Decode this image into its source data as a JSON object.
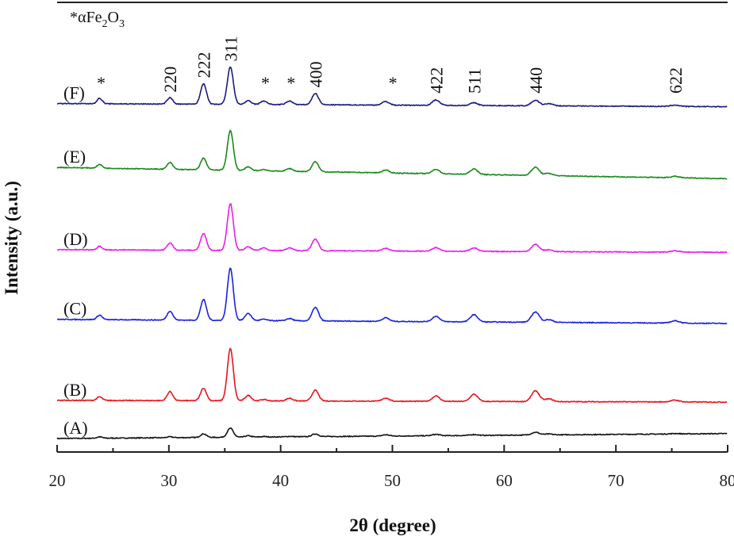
{
  "chart_data": {
    "type": "line",
    "title": "",
    "xlabel": "2θ (degree)",
    "ylabel": "Intensity (a.u.)",
    "xlim": [
      20,
      80
    ],
    "ylim": [
      0,
      100
    ],
    "xticks": [
      "20",
      "30",
      "40",
      "50",
      "60",
      "70",
      "80"
    ],
    "grid": false,
    "legend_note": {
      "star": "*",
      "alpha": "α",
      "fe": "Fe",
      "sub2": "2",
      "o": "O",
      "sub3": "3"
    },
    "peak_positions": [
      23.8,
      30.1,
      33.1,
      35.5,
      37.1,
      38.5,
      40.8,
      43.1,
      49.4,
      53.9,
      57.3,
      62.8,
      64.0,
      75.3
    ],
    "series": [
      {
        "name": "(A)",
        "color": "#111111",
        "baseline": [
          3.0,
          4.1
        ],
        "heights": [
          0.3,
          0.2,
          0.8,
          2.0,
          0.3,
          0.1,
          0.1,
          0.6,
          0.3,
          0.3,
          0.2,
          0.6,
          0.2,
          0.1
        ]
      },
      {
        "name": "(B)",
        "color": "#e8141c",
        "baseline": [
          11.5,
          11.1
        ],
        "heights": [
          0.8,
          2.0,
          2.8,
          11.6,
          1.2,
          0.3,
          0.6,
          2.4,
          0.7,
          1.2,
          1.6,
          2.4,
          0.6,
          0.4
        ]
      },
      {
        "name": "(C)",
        "color": "#1a22e0",
        "baseline": [
          29.5,
          28.6
        ],
        "heights": [
          1.0,
          2.0,
          4.6,
          11.6,
          1.6,
          0.3,
          0.5,
          3.0,
          0.8,
          1.2,
          1.6,
          2.3,
          0.6,
          0.5
        ]
      },
      {
        "name": "(D)",
        "color": "#e81ee8",
        "baseline": [
          45.0,
          44.4
        ],
        "heights": [
          0.8,
          1.6,
          3.8,
          10.4,
          0.8,
          0.6,
          0.6,
          2.6,
          0.6,
          0.8,
          0.8,
          1.6,
          0.4,
          0.3
        ]
      },
      {
        "name": "(E)",
        "color": "#1a8a1a",
        "baseline": [
          63.3,
          60.8
        ],
        "heights": [
          0.8,
          1.5,
          2.6,
          8.8,
          0.8,
          0.3,
          0.6,
          2.2,
          0.6,
          1.0,
          1.2,
          1.8,
          0.5,
          0.3
        ]
      },
      {
        "name": "(F)",
        "color": "#1a1a80",
        "baseline": [
          77.5,
          76.8
        ],
        "heights": [
          1.2,
          1.4,
          4.6,
          8.3,
          0.8,
          0.8,
          0.8,
          2.5,
          0.8,
          1.2,
          0.6,
          1.2,
          0.5,
          0.3
        ]
      }
    ],
    "hkl_labels": [
      {
        "text": "220",
        "x": 30.1
      },
      {
        "text": "222",
        "x": 33.1
      },
      {
        "text": "311",
        "x": 35.5
      },
      {
        "text": "400",
        "x": 43.1
      },
      {
        "text": "422",
        "x": 53.9
      },
      {
        "text": "511",
        "x": 57.3
      },
      {
        "text": "440",
        "x": 62.8
      },
      {
        "text": "622",
        "x": 75.3
      }
    ],
    "star_markers": [
      {
        "text": "*",
        "x": 23.8
      },
      {
        "text": "*",
        "x": 38.5
      },
      {
        "text": "*",
        "x": 40.8
      },
      {
        "text": "*",
        "x": 49.9
      }
    ]
  }
}
